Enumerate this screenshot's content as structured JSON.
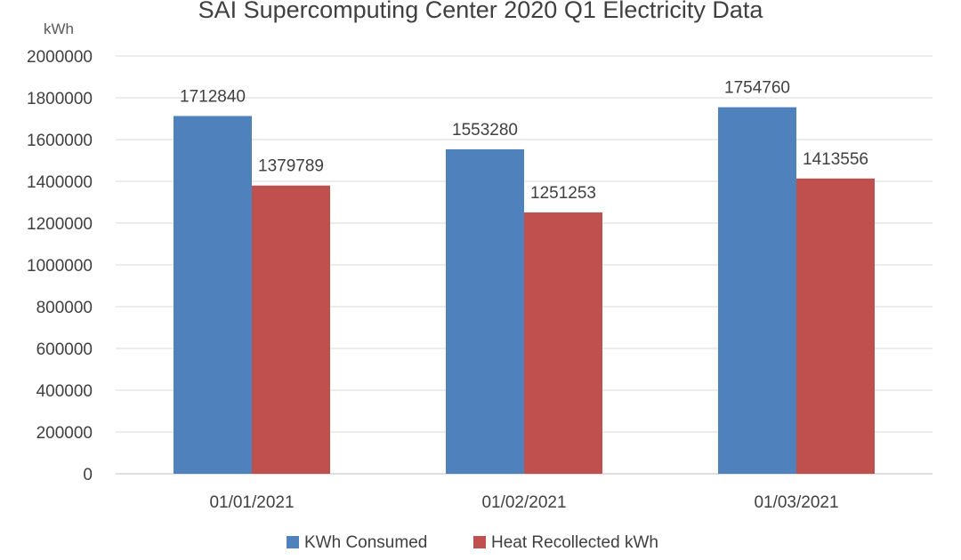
{
  "chart_data": {
    "type": "bar",
    "title": "SAI  Supercomputing Center 2020 Q1 Electricity Data",
    "ylabel": "kWh",
    "xlabel": "",
    "categories": [
      "01/01/2021",
      "01/02/2021",
      "01/03/2021"
    ],
    "series": [
      {
        "name": "KWh Consumed",
        "color": "#4f81bd",
        "values": [
          1712840,
          1553280,
          1754760
        ]
      },
      {
        "name": "Heat Recollected kWh",
        "color": "#c0504d",
        "values": [
          1379789,
          1251253,
          1413556
        ]
      }
    ],
    "ylim": [
      0,
      2000000
    ],
    "yticks": [
      "0",
      "200000",
      "400000",
      "600000",
      "800000",
      "1000000",
      "1200000",
      "1400000",
      "1600000",
      "1800000",
      "2000000"
    ],
    "grid": true,
    "legend_position": "bottom",
    "data_labels": true
  }
}
